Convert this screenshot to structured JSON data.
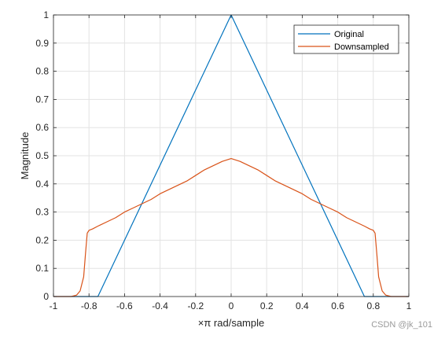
{
  "chart_data": {
    "type": "line",
    "title": "",
    "xlabel": "×π rad/sample",
    "ylabel": "Magnitude",
    "xlim": [
      -1,
      1
    ],
    "ylim": [
      0,
      1
    ],
    "xticks": [
      -1,
      -0.8,
      -0.6,
      -0.4,
      -0.2,
      0,
      0.2,
      0.4,
      0.6,
      0.8,
      1
    ],
    "xtick_labels": [
      "-1",
      "-0.8",
      "-0.6",
      "-0.4",
      "-0.2",
      "0",
      "0.2",
      "0.4",
      "0.6",
      "0.8",
      "1"
    ],
    "yticks": [
      0,
      0.1,
      0.2,
      0.3,
      0.4,
      0.5,
      0.6,
      0.7,
      0.8,
      0.9,
      1
    ],
    "ytick_labels": [
      "0",
      "0.1",
      "0.2",
      "0.3",
      "0.4",
      "0.5",
      "0.6",
      "0.7",
      "0.8",
      "0.9",
      "1"
    ],
    "grid": true,
    "legend_position": "top-right",
    "series": [
      {
        "name": "Original",
        "color": "#0072BD",
        "x": [
          -1,
          -0.75,
          0,
          0.75,
          1
        ],
        "y": [
          0,
          0,
          1,
          0,
          0
        ]
      },
      {
        "name": "Downsampled",
        "color": "#D95319",
        "x": [
          -1,
          -0.9,
          -0.87,
          -0.85,
          -0.83,
          -0.82,
          -0.81,
          -0.8,
          -0.78,
          -0.75,
          -0.7,
          -0.65,
          -0.6,
          -0.55,
          -0.5,
          -0.45,
          -0.4,
          -0.35,
          -0.3,
          -0.25,
          -0.2,
          -0.15,
          -0.1,
          -0.05,
          0,
          0.05,
          0.1,
          0.15,
          0.2,
          0.25,
          0.3,
          0.35,
          0.4,
          0.45,
          0.5,
          0.55,
          0.6,
          0.65,
          0.7,
          0.75,
          0.78,
          0.8,
          0.81,
          0.82,
          0.83,
          0.85,
          0.87,
          0.9,
          1
        ],
        "y": [
          0,
          0,
          0.005,
          0.02,
          0.07,
          0.15,
          0.225,
          0.235,
          0.24,
          0.25,
          0.265,
          0.28,
          0.3,
          0.315,
          0.33,
          0.345,
          0.365,
          0.38,
          0.395,
          0.41,
          0.43,
          0.45,
          0.465,
          0.48,
          0.49,
          0.48,
          0.465,
          0.45,
          0.43,
          0.41,
          0.395,
          0.38,
          0.365,
          0.345,
          0.33,
          0.315,
          0.3,
          0.28,
          0.265,
          0.25,
          0.24,
          0.235,
          0.225,
          0.15,
          0.07,
          0.02,
          0.005,
          0,
          0
        ]
      }
    ]
  },
  "watermark": "CSDN @jk_101"
}
